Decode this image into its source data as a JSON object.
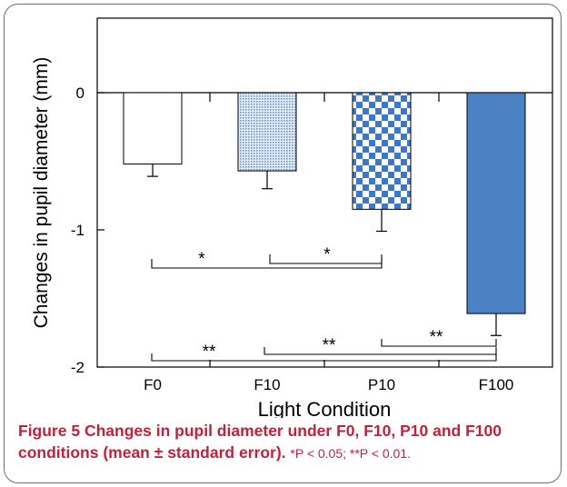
{
  "chart_data": {
    "type": "bar",
    "categories": [
      "F0",
      "F10",
      "P10",
      "F100"
    ],
    "values": [
      -0.52,
      -0.57,
      -0.85,
      -1.61
    ],
    "errors": [
      0.09,
      0.13,
      0.16,
      0.16
    ],
    "bar_fills": [
      "white",
      "fine-stipple-blue",
      "checkerboard-blue",
      "solid-blue"
    ],
    "colors": {
      "accent": "#4a82c3",
      "check": "#3d78c8",
      "stipple": "#7fa4cf",
      "axis": "#000000"
    },
    "ylim": [
      -2,
      0.5
    ],
    "yticks": [
      "0",
      "-1",
      "-2"
    ],
    "ytick_values": [
      0,
      -1,
      -2
    ],
    "xlabel": "Light Condition",
    "ylabel": "Changes in pupil diameter (mm)",
    "significance": [
      {
        "from": "F0",
        "to": "P10",
        "label": "*"
      },
      {
        "from": "F10",
        "to": "P10",
        "label": "*"
      },
      {
        "from": "F0",
        "to": "F100",
        "label": "**"
      },
      {
        "from": "F10",
        "to": "F100",
        "label": "**"
      },
      {
        "from": "P10",
        "to": "F100",
        "label": "**"
      }
    ]
  },
  "caption": {
    "label": "Figure 5",
    "title": "Changes in pupil diameter under F0, F10, P10 and F100 conditions (mean ± standard error).",
    "note": "*P < 0.05; **P < 0.01."
  }
}
